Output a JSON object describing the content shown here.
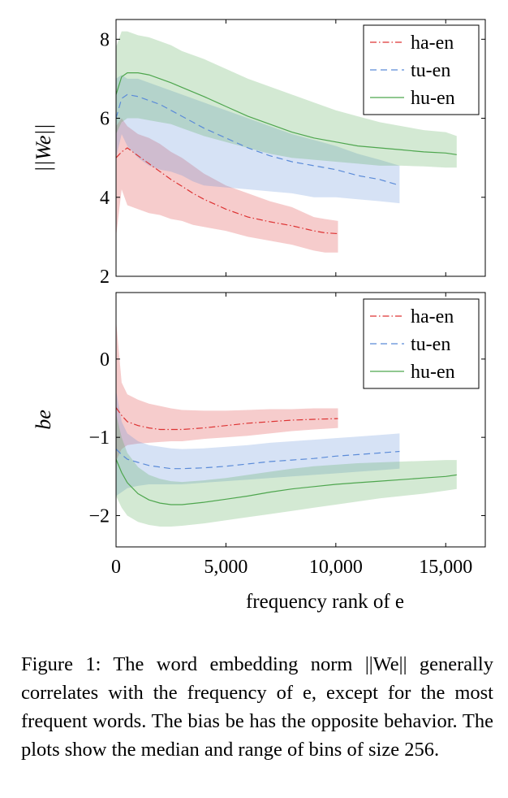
{
  "chart_data": [
    {
      "type": "area",
      "title": "",
      "xlabel": "",
      "ylabel": "||We||",
      "xlim": [
        0,
        16800
      ],
      "ylim": [
        2,
        8.5
      ],
      "yticks": [
        2,
        4,
        6,
        8
      ],
      "grid": false,
      "legend": "top-right",
      "series": [
        {
          "name": "ha-en",
          "color": "#dd3333",
          "dash": "dashdot",
          "x": [
            0,
            256,
            512,
            1000,
            1500,
            2000,
            2500,
            3000,
            3500,
            4000,
            5000,
            6000,
            7000,
            8000,
            9000,
            9500,
            10100
          ],
          "median": [
            5.0,
            5.15,
            5.25,
            5.05,
            4.85,
            4.65,
            4.45,
            4.28,
            4.1,
            3.95,
            3.7,
            3.5,
            3.38,
            3.28,
            3.15,
            3.1,
            3.08
          ],
          "low": [
            3.0,
            4.2,
            3.8,
            3.7,
            3.6,
            3.55,
            3.45,
            3.4,
            3.3,
            3.25,
            3.15,
            3.0,
            2.9,
            2.8,
            2.65,
            2.6,
            2.6
          ],
          "high": [
            5.8,
            6.0,
            5.8,
            5.6,
            5.5,
            5.35,
            5.15,
            5.0,
            4.8,
            4.6,
            4.3,
            4.1,
            3.9,
            3.75,
            3.5,
            3.45,
            3.4
          ]
        },
        {
          "name": "tu-en",
          "color": "#5b8bd8",
          "dash": "dashed",
          "x": [
            0,
            256,
            512,
            1000,
            1500,
            2000,
            2500,
            3000,
            3500,
            4000,
            5000,
            6000,
            7000,
            8000,
            9000,
            10000,
            11000,
            12000,
            12900
          ],
          "median": [
            6.0,
            6.5,
            6.6,
            6.55,
            6.45,
            6.35,
            6.2,
            6.05,
            5.9,
            5.75,
            5.5,
            5.25,
            5.05,
            4.9,
            4.8,
            4.7,
            4.55,
            4.45,
            4.3
          ],
          "low": [
            5.0,
            5.6,
            5.3,
            5.0,
            4.8,
            4.7,
            4.65,
            4.55,
            4.4,
            4.3,
            4.25,
            4.2,
            4.15,
            4.1,
            4.0,
            4.0,
            3.95,
            3.9,
            3.85
          ],
          "high": [
            7.0,
            7.1,
            7.0,
            7.0,
            6.9,
            6.8,
            6.7,
            6.6,
            6.5,
            6.4,
            6.2,
            6.0,
            5.8,
            5.6,
            5.45,
            5.3,
            5.1,
            4.95,
            4.8
          ]
        },
        {
          "name": "hu-en",
          "color": "#4ea64e",
          "dash": "solid",
          "x": [
            0,
            256,
            512,
            1000,
            1500,
            2000,
            2500,
            3000,
            4000,
            5000,
            6000,
            7000,
            8000,
            9000,
            10000,
            11000,
            12000,
            13000,
            14000,
            15000,
            15500
          ],
          "median": [
            6.6,
            7.05,
            7.15,
            7.15,
            7.1,
            7.0,
            6.9,
            6.78,
            6.55,
            6.3,
            6.05,
            5.85,
            5.65,
            5.5,
            5.4,
            5.3,
            5.25,
            5.2,
            5.15,
            5.12,
            5.08
          ],
          "low": [
            5.6,
            5.9,
            6.0,
            6.0,
            5.95,
            5.9,
            5.85,
            5.75,
            5.55,
            5.4,
            5.25,
            5.1,
            5.0,
            4.95,
            4.9,
            4.85,
            4.8,
            4.8,
            4.78,
            4.75,
            4.75
          ],
          "high": [
            7.8,
            8.2,
            8.2,
            8.1,
            8.05,
            7.95,
            7.85,
            7.7,
            7.5,
            7.25,
            7.0,
            6.8,
            6.6,
            6.4,
            6.2,
            6.05,
            5.9,
            5.8,
            5.7,
            5.65,
            5.55
          ]
        }
      ]
    },
    {
      "type": "area",
      "title": "",
      "xlabel": "frequency rank of e",
      "ylabel": "be",
      "xlim": [
        0,
        16800
      ],
      "ylim": [
        -2.4,
        0.85
      ],
      "yticks": [
        0,
        -1,
        -2
      ],
      "ytick_labels": [
        "0",
        "−1",
        "−2"
      ],
      "xticks": [
        0,
        5000,
        10000,
        15000
      ],
      "xtick_labels": [
        "0",
        "5,000",
        "10,000",
        "15,000"
      ],
      "grid": false,
      "legend": "top-right",
      "series": [
        {
          "name": "ha-en",
          "color": "#dd3333",
          "dash": "dashdot",
          "x": [
            0,
            256,
            512,
            1000,
            1500,
            2000,
            2500,
            3000,
            4000,
            5000,
            6000,
            7000,
            8000,
            9000,
            10100
          ],
          "median": [
            -0.62,
            -0.72,
            -0.8,
            -0.85,
            -0.88,
            -0.9,
            -0.9,
            -0.9,
            -0.88,
            -0.85,
            -0.82,
            -0.8,
            -0.78,
            -0.77,
            -0.76
          ],
          "low": [
            -1.3,
            -1.15,
            -1.1,
            -1.08,
            -1.07,
            -1.06,
            -1.05,
            -1.05,
            -1.02,
            -1.0,
            -0.98,
            -0.95,
            -0.92,
            -0.9,
            -0.88
          ],
          "high": [
            0.5,
            -0.3,
            -0.45,
            -0.52,
            -0.57,
            -0.6,
            -0.63,
            -0.65,
            -0.66,
            -0.66,
            -0.65,
            -0.64,
            -0.64,
            -0.63,
            -0.63
          ]
        },
        {
          "name": "tu-en",
          "color": "#5b8bd8",
          "dash": "dashed",
          "x": [
            0,
            256,
            512,
            1000,
            1500,
            2000,
            2500,
            3000,
            4000,
            5000,
            6000,
            7000,
            8000,
            9000,
            10000,
            11000,
            12000,
            12900
          ],
          "median": [
            -1.15,
            -1.22,
            -1.28,
            -1.32,
            -1.36,
            -1.38,
            -1.4,
            -1.4,
            -1.39,
            -1.37,
            -1.34,
            -1.31,
            -1.29,
            -1.27,
            -1.24,
            -1.22,
            -1.2,
            -1.18
          ],
          "low": [
            -1.75,
            -1.7,
            -1.65,
            -1.62,
            -1.6,
            -1.6,
            -1.6,
            -1.6,
            -1.58,
            -1.56,
            -1.54,
            -1.52,
            -1.5,
            -1.48,
            -1.46,
            -1.44,
            -1.42,
            -1.4
          ],
          "high": [
            -0.4,
            -0.8,
            -0.95,
            -1.05,
            -1.1,
            -1.12,
            -1.14,
            -1.15,
            -1.14,
            -1.12,
            -1.1,
            -1.07,
            -1.05,
            -1.03,
            -1.01,
            -0.99,
            -0.97,
            -0.95
          ]
        },
        {
          "name": "hu-en",
          "color": "#4ea64e",
          "dash": "solid",
          "x": [
            0,
            256,
            512,
            1000,
            1500,
            2000,
            2500,
            3000,
            4000,
            5000,
            6000,
            7000,
            8000,
            9000,
            10000,
            11000,
            12000,
            13000,
            14000,
            15000,
            15500
          ],
          "median": [
            -1.28,
            -1.45,
            -1.58,
            -1.72,
            -1.8,
            -1.84,
            -1.86,
            -1.86,
            -1.83,
            -1.79,
            -1.75,
            -1.7,
            -1.66,
            -1.63,
            -1.6,
            -1.58,
            -1.56,
            -1.54,
            -1.52,
            -1.5,
            -1.48
          ],
          "low": [
            -1.75,
            -1.9,
            -2.0,
            -2.08,
            -2.12,
            -2.14,
            -2.14,
            -2.13,
            -2.1,
            -2.06,
            -2.02,
            -1.98,
            -1.94,
            -1.9,
            -1.86,
            -1.82,
            -1.78,
            -1.75,
            -1.72,
            -1.68,
            -1.66
          ],
          "high": [
            -0.7,
            -1.0,
            -1.2,
            -1.38,
            -1.48,
            -1.53,
            -1.56,
            -1.57,
            -1.55,
            -1.52,
            -1.48,
            -1.44,
            -1.4,
            -1.37,
            -1.35,
            -1.33,
            -1.32,
            -1.31,
            -1.3,
            -1.29,
            -1.29
          ]
        }
      ]
    }
  ],
  "caption": {
    "text": "Figure 1: The word embedding norm ||We|| generally correlates with the frequency of e, except for the most frequent words. The bias be has the opposite behavior. The plots show the median and range of bins of size 256."
  }
}
